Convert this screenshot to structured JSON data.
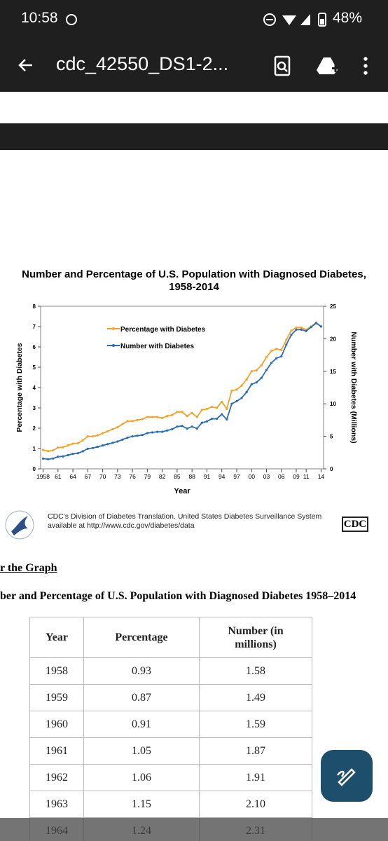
{
  "status_bar": {
    "time": "10:58",
    "battery": "48%"
  },
  "toolbar": {
    "title": "cdc_42550_DS1-2..."
  },
  "chart_data": {
    "type": "line",
    "title": [
      "Number and Percentage of U.S. Population with Diagnosed Diabetes,",
      "1958-2014"
    ],
    "x_label": "Year",
    "y_label": "Percentage with Diabetes",
    "y2_label": "Number with Diabetes (Millions)",
    "x": [
      1958,
      1959,
      1960,
      1961,
      1962,
      1963,
      1964,
      1965,
      1966,
      1967,
      1968,
      1969,
      1970,
      1971,
      1972,
      1973,
      1974,
      1975,
      1976,
      1977,
      1978,
      1979,
      1980,
      1981,
      1982,
      1983,
      1984,
      1985,
      1986,
      1987,
      1988,
      1989,
      1990,
      1991,
      1992,
      1993,
      1994,
      1995,
      1996,
      1997,
      1998,
      1999,
      2000,
      2001,
      2002,
      2003,
      2004,
      2005,
      2006,
      2007,
      2008,
      2009,
      2010,
      2011,
      2012,
      2013,
      2014
    ],
    "xlim": [
      1957.5,
      2014.5
    ],
    "xticks": [
      1958,
      {
        "value": 1961,
        "label": "61"
      },
      {
        "value": 1964,
        "label": "64"
      },
      {
        "value": 1967,
        "label": "67"
      },
      {
        "value": 1970,
        "label": "70"
      },
      {
        "value": 1973,
        "label": "73"
      },
      {
        "value": 1976,
        "label": "76"
      },
      {
        "value": 1979,
        "label": "79"
      },
      {
        "value": 1982,
        "label": "82"
      },
      {
        "value": 1985,
        "label": "85"
      },
      {
        "value": 1988,
        "label": "88"
      },
      {
        "value": 1991,
        "label": "91"
      },
      {
        "value": 1994,
        "label": "94"
      },
      {
        "value": 1997,
        "label": "97"
      },
      {
        "value": 2000,
        "label": "00"
      },
      {
        "value": 2003,
        "label": "03"
      },
      {
        "value": 2006,
        "label": "06"
      },
      {
        "value": 2009,
        "label": "09"
      },
      {
        "value": 2011,
        "label": "11"
      },
      {
        "value": 2014,
        "label": "14"
      }
    ],
    "ylim": [
      0,
      8
    ],
    "yticks": [
      0,
      1,
      2,
      3,
      4,
      5,
      6,
      7,
      8
    ],
    "y2lim": [
      0,
      25
    ],
    "y2ticks": [
      0,
      5,
      10,
      15,
      20,
      25
    ],
    "series": [
      {
        "name": "Percentage with Diabetes",
        "color": "#f0a42c",
        "values": [
          0.93,
          0.87,
          0.91,
          1.05,
          1.06,
          1.15,
          1.24,
          1.26,
          1.4,
          1.6,
          1.6,
          1.65,
          1.75,
          1.85,
          1.95,
          2.05,
          2.2,
          2.35,
          2.35,
          2.4,
          2.45,
          2.55,
          2.55,
          2.55,
          2.5,
          2.6,
          2.65,
          2.8,
          2.8,
          2.6,
          2.75,
          2.55,
          2.9,
          2.95,
          3.05,
          3.0,
          3.3,
          2.95,
          3.85,
          3.9,
          4.1,
          4.4,
          4.8,
          4.85,
          5.1,
          5.5,
          5.8,
          5.9,
          5.85,
          6.35,
          6.8,
          6.95,
          6.95,
          6.85,
          7.0,
          7.2,
          7.0
        ]
      },
      {
        "name": "Number with Diabetes",
        "color": "#2a6db3",
        "axis": "y2",
        "values": [
          1.58,
          1.49,
          1.59,
          1.87,
          1.91,
          2.1,
          2.31,
          2.4,
          2.7,
          3.1,
          3.2,
          3.4,
          3.6,
          3.8,
          4.0,
          4.2,
          4.5,
          4.8,
          5.0,
          5.1,
          5.2,
          5.5,
          5.6,
          5.7,
          5.7,
          5.9,
          6.1,
          6.5,
          6.6,
          6.2,
          6.5,
          6.2,
          7.1,
          7.3,
          7.7,
          7.7,
          8.4,
          7.6,
          10.0,
          10.4,
          10.9,
          11.8,
          13.0,
          13.3,
          14.0,
          15.2,
          16.3,
          17.0,
          17.3,
          19.1,
          20.6,
          21.4,
          21.4,
          21.2,
          21.8,
          22.4,
          21.9
        ]
      }
    ],
    "grid": false,
    "legend": "upper left"
  },
  "source": [
    "CDC's Division of Diabetes Translation. United States Diabetes Surveillance System",
    "available at http://www.cdc.gov/diabetes/data"
  ],
  "logo": "CDC",
  "section_heading": "r the Graph",
  "table": {
    "title": "ber and Percentage of U.S. Population with Diagnosed Diabetes 1958–2014",
    "header": [
      "Year",
      "Percentage",
      "Number (in millions)"
    ],
    "rows": [
      [
        "1958",
        "0.93",
        "1.58"
      ],
      [
        "1959",
        "0.87",
        "1.49"
      ],
      [
        "1960",
        "0.91",
        "1.59"
      ],
      [
        "1961",
        "1.05",
        "1.87"
      ],
      [
        "1962",
        "1.06",
        "1.91"
      ],
      [
        "1963",
        "1.15",
        "2.10"
      ],
      [
        "1964",
        "1.24",
        "2.31"
      ]
    ]
  }
}
